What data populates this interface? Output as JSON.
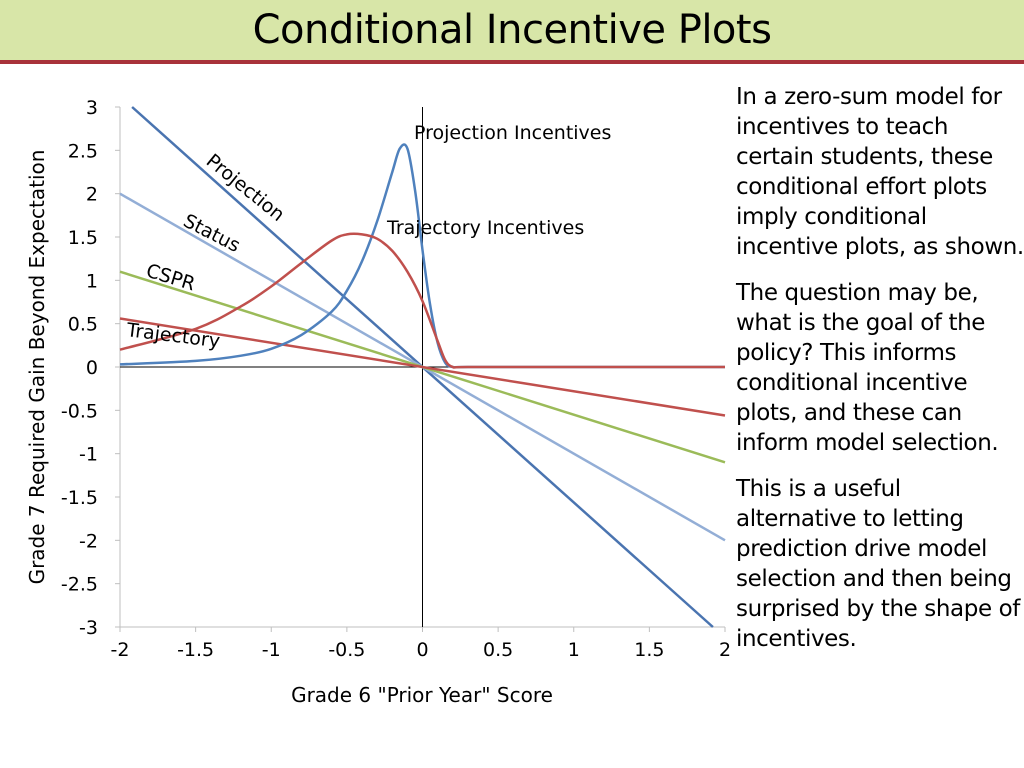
{
  "slide": {
    "title": "Conditional Incentive Plots",
    "paragraphs": [
      "In a zero-sum model for incentives to teach certain students, these conditional effort plots imply conditional incentive plots, as shown.",
      "The question may be, what is the goal of the policy?  This informs conditional incentive plots, and these can inform model selection.",
      "This is a useful alternative to letting prediction drive model selection and then being surprised by the shape of incentives."
    ]
  },
  "chart_data": {
    "type": "line",
    "title": "",
    "xlabel": "Grade 6 \"Prior Year\" Score",
    "ylabel": "Grade 7 Required Gain Beyond Expectation",
    "xlim": [
      -2,
      2
    ],
    "ylim": [
      -3,
      3
    ],
    "x_ticks": [
      "-2",
      "-1.5",
      "-1",
      "-0.5",
      "0",
      "0.5",
      "1",
      "1.5",
      "2"
    ],
    "y_ticks": [
      "3",
      "2.5",
      "2",
      "1.5",
      "1",
      "0.5",
      "0",
      "-0.5",
      "-1",
      "-1.5",
      "-2",
      "-2.5",
      "-3"
    ],
    "grid": false,
    "series": [
      {
        "name": "Projection",
        "color": "#4a74b0",
        "x": [
          -1.92,
          1.92
        ],
        "y": [
          3.0,
          -3.0
        ]
      },
      {
        "name": "Status",
        "color": "#93aed6",
        "x": [
          -2,
          2
        ],
        "y": [
          2.0,
          -2.0
        ]
      },
      {
        "name": "CSPR",
        "color": "#9bbb59",
        "x": [
          -2,
          2
        ],
        "y": [
          1.1,
          -1.1
        ]
      },
      {
        "name": "Trajectory",
        "color": "#c0504d",
        "x": [
          -2,
          2
        ],
        "y": [
          0.56,
          -0.56
        ]
      },
      {
        "name": "Projection Incentives",
        "color": "#4f81bd",
        "x": [
          -2.0,
          -1.5,
          -1.2,
          -1.0,
          -0.8,
          -0.6,
          -0.5,
          -0.4,
          -0.3,
          -0.2,
          -0.15,
          -0.1,
          -0.05,
          0.0,
          0.05,
          0.1,
          0.15,
          0.2,
          0.3,
          1.0,
          2.0
        ],
        "y": [
          0.03,
          0.07,
          0.13,
          0.21,
          0.37,
          0.64,
          0.88,
          1.22,
          1.68,
          2.25,
          2.52,
          2.52,
          2.05,
          1.35,
          0.72,
          0.28,
          0.05,
          0.0,
          0.0,
          0.0,
          0.0
        ]
      },
      {
        "name": "Trajectory Incentives",
        "color": "#c0504d",
        "x": [
          -2.0,
          -1.5,
          -1.2,
          -1.0,
          -0.8,
          -0.6,
          -0.5,
          -0.4,
          -0.3,
          -0.2,
          -0.1,
          0.0,
          0.1,
          0.15,
          0.2,
          0.3,
          1.0,
          2.0
        ],
        "y": [
          0.2,
          0.44,
          0.7,
          0.93,
          1.2,
          1.46,
          1.53,
          1.53,
          1.48,
          1.34,
          1.1,
          0.76,
          0.3,
          0.08,
          0.0,
          0.0,
          0.0,
          0.0
        ]
      }
    ],
    "annotations": [
      "Projection",
      "Status",
      "CSPR",
      "Trajectory",
      "Projection Incentives",
      "Trajectory Incentives"
    ]
  }
}
